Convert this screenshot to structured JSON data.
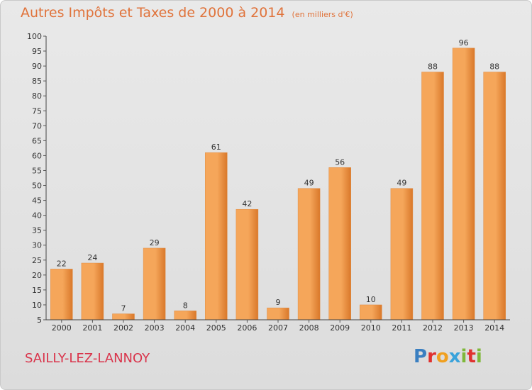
{
  "header": {
    "title": "Autres Impôts et Taxes de 2000 à 2014",
    "unit": "(en milliers d'€)"
  },
  "footer": {
    "commune": "SAILLY-LEZ-LANNOY",
    "logo": [
      "P",
      "r",
      "o",
      "x",
      "i",
      "t",
      "i"
    ],
    "logo_colors": [
      "#3a7fc1",
      "#e0312f",
      "#f0a020",
      "#3aa3db",
      "#7fb83a",
      "#e0312f",
      "#7fb83a"
    ]
  },
  "colors": {
    "bar_light": "#f5a65a",
    "bar_dark": "#d9782a",
    "axis": "#444444",
    "grid_tick": "#555555"
  },
  "chart_data": {
    "type": "bar",
    "title": "Autres Impôts et Taxes de 2000 à 2014",
    "subtitle": "(en milliers d'€)",
    "xlabel": "",
    "ylabel": "",
    "ylim": [
      5,
      100
    ],
    "yticks": [
      5,
      10,
      15,
      20,
      25,
      30,
      35,
      40,
      45,
      50,
      55,
      60,
      65,
      70,
      75,
      80,
      85,
      90,
      95,
      100
    ],
    "grid": false,
    "categories": [
      "2000",
      "2001",
      "2002",
      "2003",
      "2004",
      "2005",
      "2006",
      "2007",
      "2008",
      "2009",
      "2010",
      "2011",
      "2012",
      "2013",
      "2014"
    ],
    "values": [
      22,
      24,
      7,
      29,
      8,
      61,
      42,
      9,
      49,
      56,
      10,
      49,
      88,
      96,
      88
    ]
  }
}
